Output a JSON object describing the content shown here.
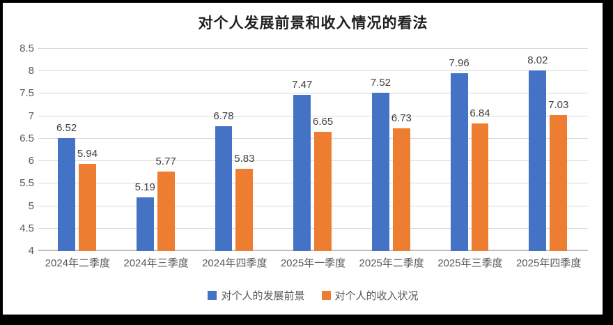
{
  "window": {
    "frame_color": "#000000",
    "surface_color": "#ffffff"
  },
  "chart_data": {
    "type": "bar",
    "title": "对个人发展前景和收入情况的看法",
    "categories": [
      "2024年二季度",
      "2024年三季度",
      "2024年四季度",
      "2025年一季度",
      "2025年二季度",
      "2025年三季度",
      "2025年四季度"
    ],
    "series": [
      {
        "name": "对个人的发展前景",
        "color": "#4472C4",
        "values": [
          6.52,
          5.19,
          6.78,
          7.47,
          7.52,
          7.96,
          8.02
        ]
      },
      {
        "name": "对个人的收入状况",
        "color": "#ED7D31",
        "values": [
          5.94,
          5.77,
          5.83,
          6.65,
          6.73,
          6.84,
          7.03
        ]
      }
    ],
    "ylim": [
      4,
      8.5
    ],
    "ytick_step": 0.5,
    "ytick_labels": [
      "4",
      "4.5",
      "5",
      "5.5",
      "6",
      "6.5",
      "7",
      "7.5",
      "8",
      "8.5"
    ],
    "grid": true,
    "value_labels": true,
    "legend_position": "bottom",
    "gridline_color": "#d9d9d9",
    "label_color": "#404040",
    "tick_color": "#595959"
  }
}
